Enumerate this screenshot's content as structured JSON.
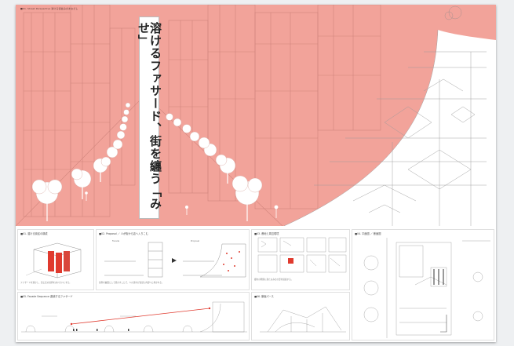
{
  "poster": {
    "title": "溶けるファサード、街を纏う「みせ」",
    "hero_note": "■01. Street Perspective 溶ける街並みのまなざし",
    "colors": {
      "accent": "#f2a39a",
      "paper": "#ffffff",
      "line": "#8a6a66",
      "highlight": "#e03a2e"
    }
  },
  "panels": {
    "p1": {
      "title": "■01. 溶ける街区の構成",
      "note": "ファサードを溶かし、街と店の境界をあいまいにする。"
    },
    "p2": {
      "title": "■02. Proposal ／ 人が街から店へ入りこむ",
      "label_a": "Facade",
      "label_b": "Proposal",
      "note": "境界を曲面として溶かすことで、人の流れが自然に内部へと導かれる。"
    },
    "p3": {
      "title": "■03. 敷地と周辺環境",
      "note": "都市の隙間に新たなみせの形を提案する。"
    },
    "p4": {
      "title": "■04. 平面図 ／ 断面図",
      "note": ""
    },
    "p5": {
      "title": "■05. Facade Sequence 連続するファサード",
      "note": ""
    },
    "p6": {
      "title": "■06. 断面パース",
      "note": ""
    }
  }
}
